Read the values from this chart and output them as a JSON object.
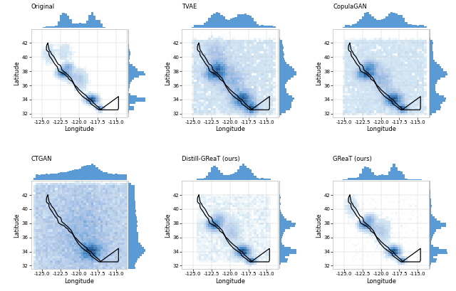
{
  "titles": [
    "Original",
    "TVAE",
    "CopulaGAN",
    "CTGAN",
    "Distill-GReaT (ours)",
    "GReaT (ours)"
  ],
  "lon_range": [
    -126.5,
    -113.5
  ],
  "lat_range": [
    31.5,
    44.0
  ],
  "lon_ticks": [
    -125.0,
    -122.5,
    -120.0,
    -117.5,
    -115.0
  ],
  "lat_ticks": [
    32,
    34,
    36,
    38,
    40,
    42
  ],
  "xlabel": "Longitude",
  "ylabel": "Latitude",
  "hist_color": "#5b9bd5",
  "background_color": "#ffffff",
  "grid_color": "#e0e0e0",
  "n_lon_bins": 40,
  "n_lat_bins": 40,
  "figsize": [
    6.4,
    4.09
  ],
  "dpi": 100
}
